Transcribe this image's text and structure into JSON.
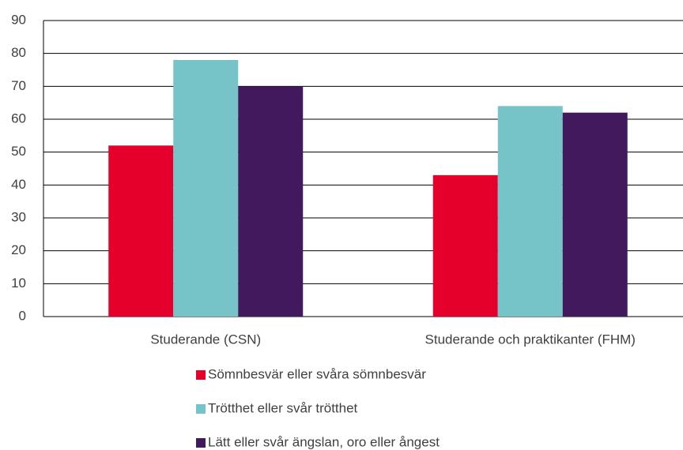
{
  "chart_data": {
    "type": "bar",
    "categories": [
      "Studerande (CSN)",
      "Studerande och praktikanter (FHM)"
    ],
    "series": [
      {
        "name": "Sömnbesvär eller svåra sömnbesvär",
        "color": "#e4002b",
        "values": [
          52,
          43
        ]
      },
      {
        "name": "Trötthet eller svår trötthet",
        "color": "#76c4c8",
        "values": [
          78,
          64
        ]
      },
      {
        "name": "Lätt eller svår ängslan, oro eller ångest",
        "color": "#42195c",
        "values": [
          70,
          62
        ]
      }
    ],
    "ylim": [
      0,
      90
    ],
    "yticks": [
      0,
      10,
      20,
      30,
      40,
      50,
      60,
      70,
      80,
      90
    ],
    "grid": true
  }
}
